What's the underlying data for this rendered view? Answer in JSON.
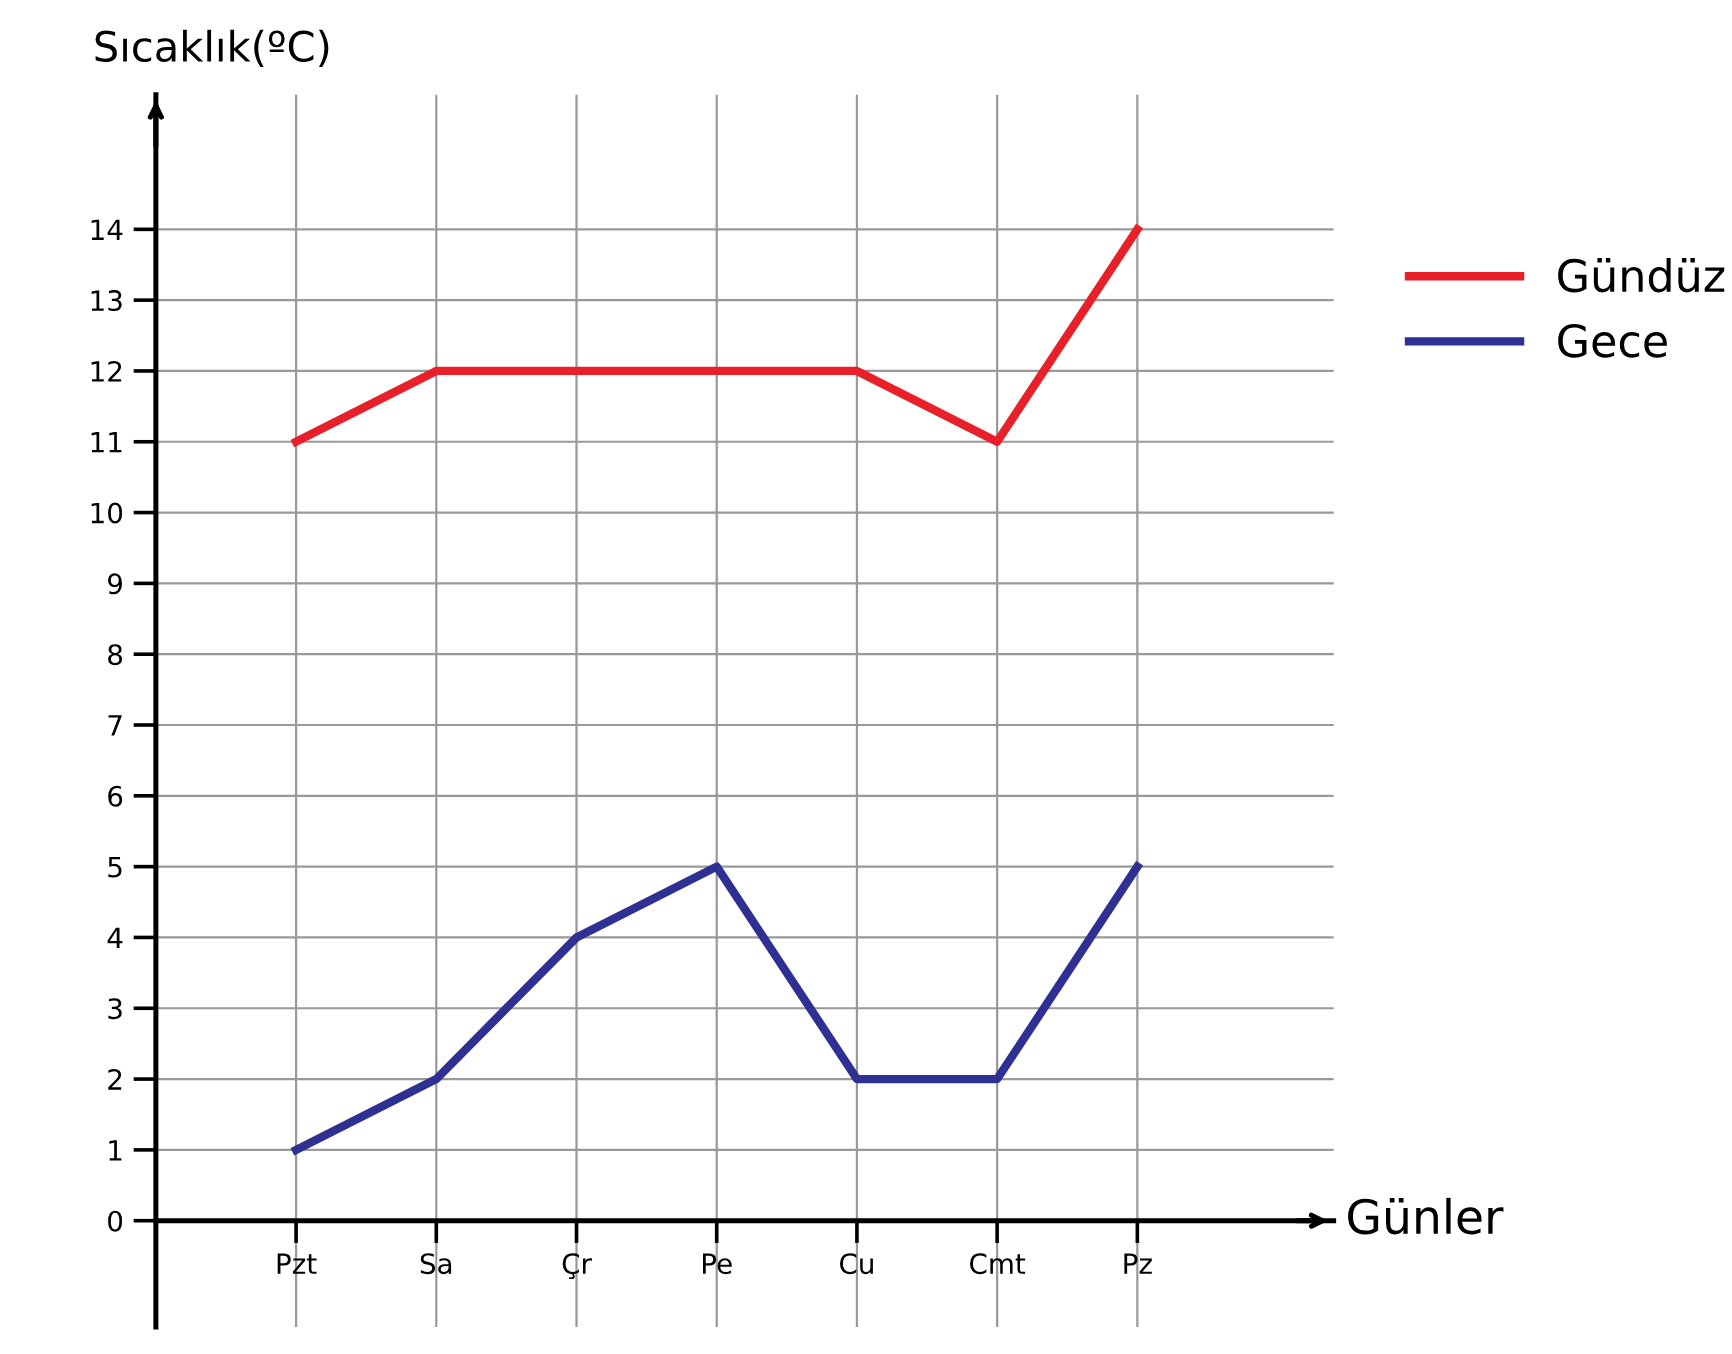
{
  "chart_data": {
    "type": "line",
    "ylabel": "Sıcaklık(ºC)",
    "xlabel": "Günler",
    "categories": [
      "Pzt",
      "Sa",
      "Çr",
      "Pe",
      "Cu",
      "Cmt",
      "Pz"
    ],
    "series": [
      {
        "name": "Gündüz",
        "color": "#e8202a",
        "values": [
          11,
          12,
          12,
          12,
          12,
          11,
          14
        ]
      },
      {
        "name": "Gece",
        "color": "#2e3192",
        "values": [
          1,
          2,
          4,
          5,
          2,
          2,
          5
        ]
      }
    ],
    "ylim": [
      -1.5,
      15.9
    ],
    "yticks": [
      0,
      1,
      2,
      3,
      4,
      5,
      6,
      7,
      8,
      9,
      10,
      11,
      12,
      13,
      14
    ],
    "grid": true,
    "legend": "right",
    "marker": "none",
    "line_style": "solid"
  }
}
